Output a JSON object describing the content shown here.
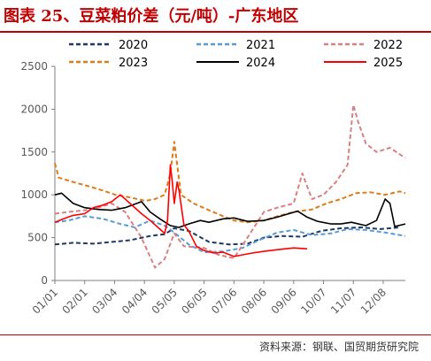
{
  "title": "图表 25、豆菜粕价差（元/吨）-广东地区",
  "source": "资料来源：钢联、国贸期货研究院",
  "chart_data": {
    "type": "line",
    "title": "图表 25、豆菜粕价差（元/吨）-广东地区",
    "xlabel": "",
    "ylabel": "",
    "ylim": [
      0,
      2500
    ],
    "y_ticks": [
      0,
      500,
      1000,
      1500,
      2000,
      2500
    ],
    "x_ticks": [
      "01/01",
      "02/01",
      "03/04",
      "04/04",
      "05/05",
      "06/05",
      "07/06",
      "08/06",
      "09/06",
      "10/07",
      "11/07",
      "12/08"
    ],
    "grid": false,
    "legend": "top",
    "x_domain": [
      "01/01",
      "12/31"
    ],
    "series": [
      {
        "name": "2020",
        "color": "#1f3864",
        "dash": "dashed",
        "x": [
          "01/01",
          "01/20",
          "02/10",
          "03/01",
          "03/20",
          "04/10",
          "04/25",
          "05/05",
          "05/20",
          "06/10",
          "07/01",
          "07/20",
          "08/06",
          "08/25",
          "09/15",
          "10/05",
          "10/25",
          "11/15",
          "12/05",
          "12/25"
        ],
        "y": [
          420,
          440,
          430,
          450,
          470,
          520,
          540,
          610,
          580,
          450,
          420,
          430,
          500,
          520,
          510,
          580,
          610,
          620,
          600,
          620
        ]
      },
      {
        "name": "2021",
        "color": "#5b9bd5",
        "dash": "dashed",
        "x": [
          "01/01",
          "01/15",
          "02/01",
          "02/20",
          "03/10",
          "03/25",
          "04/10",
          "04/25",
          "05/05",
          "05/20",
          "06/05",
          "06/25",
          "07/15",
          "08/01",
          "08/20",
          "09/06",
          "09/25",
          "10/15",
          "11/01",
          "11/20",
          "12/10",
          "12/31"
        ],
        "y": [
          680,
          700,
          750,
          720,
          660,
          620,
          700,
          640,
          560,
          420,
          330,
          340,
          380,
          470,
          560,
          590,
          530,
          550,
          600,
          590,
          560,
          520
        ]
      },
      {
        "name": "2022",
        "color": "#d98080",
        "dash": "dashed",
        "x": [
          "01/01",
          "01/15",
          "02/01",
          "02/15",
          "03/01",
          "03/15",
          "04/01",
          "04/15",
          "04/25",
          "05/05",
          "05/15",
          "06/05",
          "06/20",
          "07/06",
          "07/20",
          "08/06",
          "08/20",
          "09/06",
          "09/15",
          "09/25",
          "10/07",
          "10/20",
          "11/01",
          "11/07",
          "11/12",
          "11/20",
          "12/01",
          "12/15",
          "12/31"
        ],
        "y": [
          780,
          800,
          820,
          850,
          900,
          800,
          500,
          150,
          250,
          550,
          400,
          380,
          300,
          260,
          500,
          800,
          850,
          900,
          1250,
          950,
          1000,
          1150,
          1350,
          2050,
          1850,
          1600,
          1500,
          1550,
          1430
        ]
      },
      {
        "name": "2023",
        "color": "#e07b1a",
        "dash": "dashed",
        "x": [
          "01/01",
          "01/05",
          "01/20",
          "02/05",
          "02/20",
          "03/05",
          "03/20",
          "04/05",
          "04/15",
          "04/25",
          "05/01",
          "05/05",
          "05/12",
          "05/25",
          "06/10",
          "06/25",
          "07/06",
          "07/20",
          "08/06",
          "08/20",
          "09/06",
          "09/25",
          "10/10",
          "10/25",
          "11/10",
          "11/25",
          "12/10",
          "12/25",
          "12/31"
        ],
        "y": [
          1370,
          1200,
          1150,
          1100,
          1050,
          1000,
          970,
          930,
          950,
          1000,
          1250,
          1620,
          1000,
          900,
          820,
          750,
          700,
          680,
          700,
          750,
          800,
          830,
          900,
          950,
          1020,
          1030,
          1000,
          1040,
          1020
        ]
      },
      {
        "name": "2024",
        "color": "#000000",
        "dash": "solid",
        "x": [
          "01/01",
          "01/08",
          "01/20",
          "02/01",
          "02/15",
          "03/01",
          "03/15",
          "04/01",
          "04/10",
          "04/20",
          "05/01",
          "05/10",
          "05/20",
          "06/01",
          "06/10",
          "06/25",
          "07/06",
          "07/20",
          "08/06",
          "08/20",
          "09/01",
          "09/10",
          "09/20",
          "10/01",
          "10/15",
          "10/25",
          "11/05",
          "11/20",
          "12/01",
          "12/10",
          "12/15",
          "12/20",
          "12/31"
        ],
        "y": [
          1000,
          1020,
          900,
          850,
          830,
          820,
          850,
          920,
          800,
          720,
          640,
          620,
          660,
          700,
          680,
          720,
          730,
          690,
          700,
          740,
          780,
          810,
          740,
          690,
          660,
          660,
          680,
          640,
          700,
          950,
          900,
          630,
          660
        ]
      },
      {
        "name": "2025",
        "color": "#ff0000",
        "dash": "solid",
        "x": [
          "01/01",
          "01/10",
          "01/20",
          "02/01",
          "02/10",
          "02/20",
          "03/01",
          "03/10",
          "03/20",
          "04/01",
          "04/10",
          "04/20",
          "04/25",
          "04/28",
          "05/01",
          "05/03",
          "05/05",
          "05/08",
          "05/10",
          "05/15",
          "05/20",
          "05/28",
          "06/05",
          "06/15",
          "06/25",
          "07/06",
          "07/15",
          "07/25",
          "08/06",
          "08/20",
          "09/06",
          "09/20"
        ],
        "y": [
          680,
          720,
          760,
          780,
          850,
          880,
          920,
          1000,
          900,
          780,
          700,
          600,
          550,
          700,
          1350,
          1150,
          900,
          1150,
          1050,
          650,
          580,
          400,
          350,
          320,
          330,
          280,
          300,
          320,
          340,
          360,
          380,
          370
        ]
      }
    ]
  }
}
